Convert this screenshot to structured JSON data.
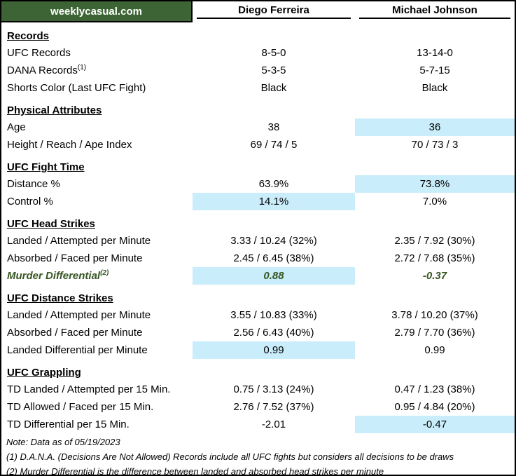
{
  "header": {
    "site": "weeklycasual.com",
    "fighters": [
      "Diego Ferreira",
      "Michael Johnson"
    ]
  },
  "colors": {
    "brand_green": "#3c6434",
    "highlight_blue": "#caedfb",
    "accent_green_text": "#375623"
  },
  "sections": [
    {
      "title": "Records",
      "rows": [
        {
          "label": "UFC Records",
          "values": [
            "8-5-0",
            "13-14-0"
          ],
          "highlight": [
            false,
            false
          ]
        },
        {
          "label": "DANA Records",
          "sup": "(1)",
          "values": [
            "5-3-5",
            "5-7-15"
          ],
          "highlight": [
            false,
            false
          ]
        },
        {
          "label": "Shorts Color (Last UFC Fight)",
          "values": [
            "Black",
            "Black"
          ],
          "highlight": [
            false,
            false
          ]
        }
      ]
    },
    {
      "title": "Physical Attributes",
      "rows": [
        {
          "label": "Age",
          "values": [
            "38",
            "36"
          ],
          "highlight": [
            false,
            true
          ]
        },
        {
          "label": "Height / Reach / Ape Index",
          "values": [
            "69 / 74 / 5",
            "70 / 73 / 3"
          ],
          "highlight": [
            false,
            false
          ]
        }
      ]
    },
    {
      "title": "UFC Fight Time",
      "rows": [
        {
          "label": "Distance %",
          "values": [
            "63.9%",
            "73.8%"
          ],
          "highlight": [
            false,
            true
          ]
        },
        {
          "label": "Control %",
          "values": [
            "14.1%",
            "7.0%"
          ],
          "highlight": [
            true,
            false
          ]
        }
      ]
    },
    {
      "title": "UFC Head Strikes",
      "rows": [
        {
          "label": "Landed / Attempted per Minute",
          "values": [
            "3.33 / 10.24 (32%)",
            "2.35 / 7.92 (30%)"
          ],
          "highlight": [
            false,
            false
          ]
        },
        {
          "label": "Absorbed / Faced per Minute",
          "values": [
            "2.45 / 6.45 (38%)",
            "2.72 / 7.68 (35%)"
          ],
          "highlight": [
            false,
            false
          ]
        },
        {
          "label": "Murder Differential",
          "sup": "(2)",
          "values": [
            "0.88",
            "-0.37"
          ],
          "highlight": [
            true,
            false
          ],
          "accent": true
        }
      ]
    },
    {
      "title": "UFC Distance Strikes",
      "rows": [
        {
          "label": "Landed / Attempted per Minute",
          "values": [
            "3.55 / 10.83 (33%)",
            "3.78 / 10.20 (37%)"
          ],
          "highlight": [
            false,
            false
          ]
        },
        {
          "label": "Absorbed / Faced per Minute",
          "values": [
            "2.56 / 6.43 (40%)",
            "2.79 / 7.70 (36%)"
          ],
          "highlight": [
            false,
            false
          ]
        },
        {
          "label": "Landed Differential per Minute",
          "values": [
            "0.99",
            "0.99"
          ],
          "highlight": [
            true,
            false
          ]
        }
      ]
    },
    {
      "title": "UFC Grappling",
      "rows": [
        {
          "label": "TD Landed / Attempted per 15 Min.",
          "values": [
            "0.75 / 3.13 (24%)",
            "0.47 / 1.23 (38%)"
          ],
          "highlight": [
            false,
            false
          ]
        },
        {
          "label": "TD Allowed / Faced per 15 Min.",
          "values": [
            "2.76 / 7.52 (37%)",
            "0.95 / 4.84 (20%)"
          ],
          "highlight": [
            false,
            false
          ]
        },
        {
          "label": "TD Differential per 15 Min.",
          "values": [
            "-2.01",
            "-0.47"
          ],
          "highlight": [
            false,
            true
          ]
        }
      ]
    }
  ],
  "notes": [
    "Note: Data as of 05/19/2023",
    "(1) D.A.N.A. (Decisions Are Not Allowed) Records include all UFC fights but considers all decisions to be draws",
    "(2) Murder Differential is the difference between landed and absorbed head strikes per minute"
  ]
}
